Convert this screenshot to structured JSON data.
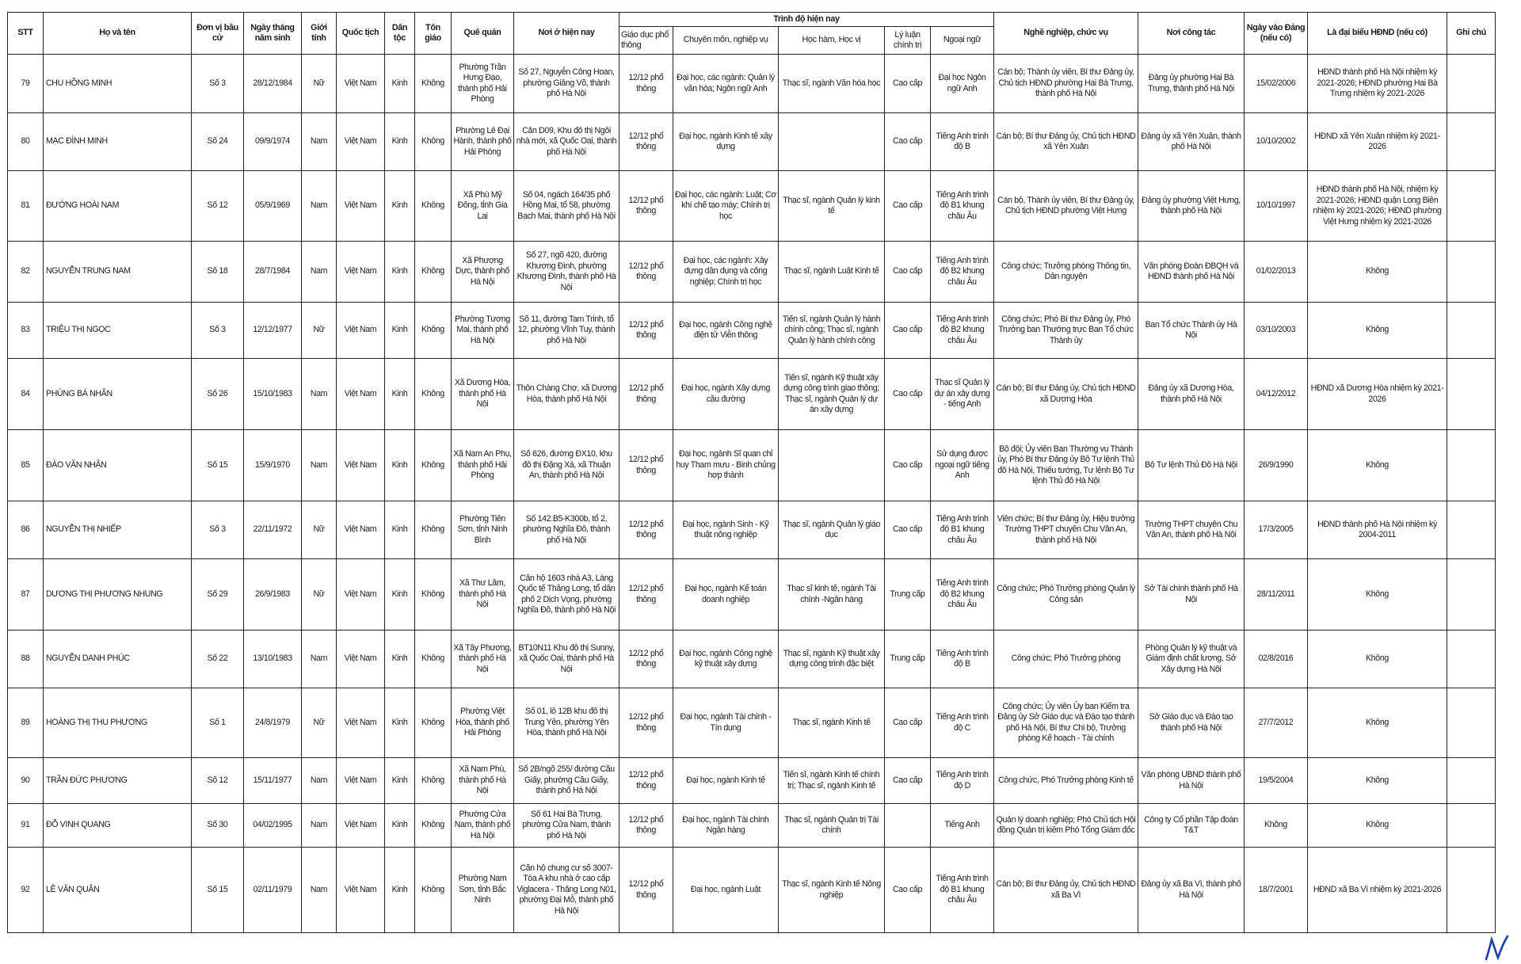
{
  "headers": {
    "stt": "STT",
    "name": "Họ và tên",
    "unit": "Đơn vị bầu cử",
    "dob": "Ngày tháng năm sinh",
    "gender": "Giới tính",
    "nationality": "Quốc tịch",
    "ethnicity": "Dân tộc",
    "religion": "Tôn giáo",
    "hometown": "Quê quán",
    "residence": "Nơi ở hiện nay",
    "education_group": "Trình độ hiện nay",
    "general_edu": "Giáo dục phổ thông",
    "specialty": "Chuyên môn, nghiệp vụ",
    "degree": "Học hàm, Học vị",
    "politics": "Lý luận chính trị",
    "language": "Ngoại ngữ",
    "occupation": "Nghề nghiệp, chức vụ",
    "workplace": "Nơi công tác",
    "party_date": "Ngày vào Đảng (nếu có)",
    "council": "Là đại biểu HĐND (nếu có)",
    "note": "Ghi chú"
  },
  "rows": [
    {
      "stt": "79",
      "name": "CHU HỒNG MINH",
      "unit": "Số 3",
      "dob": "28/12/1984",
      "gender": "Nữ",
      "nationality": "Việt Nam",
      "ethnicity": "Kinh",
      "religion": "Không",
      "hometown": "Phường Trần Hưng Đạo, thành phố Hải Phòng",
      "residence": "Số 27, Nguyễn Công Hoan, phường Giảng Võ, thành phố Hà Nội",
      "general_edu": "12/12 phổ thông",
      "specialty": "Đại học, các ngành: Quản lý văn hóa; Ngôn ngữ Anh",
      "degree": "Thạc sĩ, ngành Văn hóa học",
      "politics": "Cao cấp",
      "language": "Đại học Ngôn ngữ Anh",
      "occupation": "Cán bộ; Thành ủy viên, Bí thư Đảng ủy, Chủ tịch HĐND phường Hai Bà Trưng, thành phố Hà Nội",
      "workplace": "Đảng ủy phường Hai Bà Trưng, thành phố Hà Nội",
      "party_date": "15/02/2006",
      "council": "HĐND thành phố Hà Nội nhiệm kỳ 2021-2026; HĐND phường Hai Bà Trưng nhiệm kỳ 2021-2026",
      "note": ""
    },
    {
      "stt": "80",
      "name": "MẠC ĐÌNH MINH",
      "unit": "Số 24",
      "dob": "09/9/1974",
      "gender": "Nam",
      "nationality": "Việt Nam",
      "ethnicity": "Kinh",
      "religion": "Không",
      "hometown": "Phường Lê Đại Hành, thành phố Hải Phòng",
      "residence": "Căn D09, Khu đô thị Ngôi nhà mới, xã Quốc Oai, thành phố Hà Nội",
      "general_edu": "12/12 phổ thông",
      "specialty": "Đại học, ngành Kinh tế xây dựng",
      "degree": "",
      "politics": "Cao cấp",
      "language": "Tiếng Anh trình độ B",
      "occupation": "Cán bộ; Bí thư Đảng ủy, Chủ tịch HĐND xã Yên Xuân",
      "workplace": "Đảng ủy xã Yên Xuân, thành phố Hà Nội",
      "party_date": "10/10/2002",
      "council": "HĐND xã Yên Xuân nhiệm kỳ 2021-2026",
      "note": ""
    },
    {
      "stt": "81",
      "name": "ĐƯỜNG HOÀI NAM",
      "unit": "Số 12",
      "dob": "05/9/1969",
      "gender": "Nam",
      "nationality": "Việt Nam",
      "ethnicity": "Kinh",
      "religion": "Không",
      "hometown": "Xã Phù Mỹ Đông, tỉnh Gia Lai",
      "residence": "Số 04, ngách 164/35 phố Hồng Mai, tổ 58, phường Bạch Mai, thành phố Hà Nội",
      "general_edu": "12/12 phổ thông",
      "specialty": "Đại học, các ngành: Luật; Cơ khí chế tạo máy; Chính trị học",
      "degree": "Thạc sĩ, ngành Quản lý kinh tế",
      "politics": "Cao cấp",
      "language": "Tiếng Anh trình độ B1 khung châu Âu",
      "occupation": "Cán bộ, Thành ủy viên, Bí thư Đảng ủy, Chủ tịch HĐND phường Việt Hưng",
      "workplace": "Đảng ủy phường Việt Hưng, thành phố Hà Nội",
      "party_date": "10/10/1997",
      "council": "HĐND thành phố Hà Nội, nhiệm kỳ 2021-2026; HĐND quận Long Biên nhiệm kỳ 2021-2026; HĐND phường Việt Hưng nhiệm kỳ 2021-2026",
      "note": ""
    },
    {
      "stt": "82",
      "name": "NGUYỄN TRUNG NAM",
      "unit": "Số 18",
      "dob": "28/7/1984",
      "gender": "Nam",
      "nationality": "Việt Nam",
      "ethnicity": "Kinh",
      "religion": "Không",
      "hometown": "Xã Phượng Dực, thành phố Hà Nội",
      "residence": "Số 27, ngõ 420, đường Khương Đình, phường Khương Đình, thành phố Hà Nội",
      "general_edu": "12/12 phổ thông",
      "specialty": "Đại học, các ngành: Xây dựng dân dụng và công nghiệp; Chính trị học",
      "degree": "Thạc sĩ, ngành Luật Kinh tế",
      "politics": "Cao cấp",
      "language": "Tiếng Anh trình độ B2 khung châu Âu",
      "occupation": "Công chức; Trưởng phòng Thông tin, Dân nguyện",
      "workplace": "Văn phòng Đoàn ĐBQH và HĐND thành phố Hà Nội",
      "party_date": "01/02/2013",
      "council": "Không",
      "note": ""
    },
    {
      "stt": "83",
      "name": "TRIỆU THỊ NGỌC",
      "unit": "Số 3",
      "dob": "12/12/1977",
      "gender": "Nữ",
      "nationality": "Việt Nam",
      "ethnicity": "Kinh",
      "religion": "Không",
      "hometown": "Phường Tương Mai, thành phố Hà Nội",
      "residence": "Số 11, đường Tam Trinh, tổ 12, phường Vĩnh Tuy, thành phố Hà Nội",
      "general_edu": "12/12 phổ thông",
      "specialty": "Đại học, ngành Công nghệ điện tử Viễn thông",
      "degree": "Tiến sĩ, ngành Quản lý hành chính công; Thạc sĩ, ngành Quản lý hành chính công",
      "politics": "Cao cấp",
      "language": "Tiếng Anh trình độ B2 khung châu Âu",
      "occupation": "Công chức; Phó Bí thư Đảng ủy, Phó Trưởng ban Thường trực Ban Tổ chức Thành ủy",
      "workplace": "Ban Tổ chức Thành ủy Hà Nội",
      "party_date": "03/10/2003",
      "council": "Không",
      "note": ""
    },
    {
      "stt": "84",
      "name": "PHÙNG BÁ NHÂN",
      "unit": "Số 26",
      "dob": "15/10/1983",
      "gender": "Nam",
      "nationality": "Việt Nam",
      "ethnicity": "Kinh",
      "religion": "Không",
      "hometown": "Xã Dương Hòa, thành phố Hà Nội",
      "residence": "Thôn Chàng Chợ, xã Dương Hòa, thành phố Hà Nội",
      "general_edu": "12/12 phổ thông",
      "specialty": "Đại học, ngành Xây dựng cầu đường",
      "degree": "Tiến sĩ, ngành Kỹ thuật xây dựng công trình giao thông; Thạc sĩ, ngành Quản lý dự án xây dựng",
      "politics": "Cao cấp",
      "language": "Thạc sĩ Quản lý dự án xây dựng - tiếng Anh",
      "occupation": "Cán bộ; Bí thư Đảng ủy, Chủ tịch HĐND xã Dương Hòa",
      "workplace": "Đảng ủy xã Dương Hòa, thành phố Hà Nội",
      "party_date": "04/12/2012",
      "council": "HĐND xã Dương Hòa nhiệm kỳ 2021-2026",
      "note": ""
    },
    {
      "stt": "85",
      "name": "ĐÀO VĂN NHẬN",
      "unit": "Số 15",
      "dob": "15/9/1970",
      "gender": "Nam",
      "nationality": "Việt Nam",
      "ethnicity": "Kinh",
      "religion": "Không",
      "hometown": "Xã Nam An Phụ, thành phố Hải Phòng",
      "residence": "Số 626, đường ĐX10, khu đô thị Đặng Xá, xã Thuận An, thành phố Hà Nội",
      "general_edu": "12/12 phổ thông",
      "specialty": "Đại học, ngành Sĩ quan chỉ huy Tham mưu - Binh chủng hợp thành",
      "degree": "",
      "politics": "Cao cấp",
      "language": "Sử dụng được ngoại ngữ tiếng Anh",
      "occupation": "Bộ đội; Ủy viên Ban Thường vụ Thành ủy, Phó Bí thư Đảng ủy Bộ Tư lệnh Thủ đô Hà Nội, Thiếu tướng, Tư lệnh Bộ Tư lệnh Thủ đô Hà Nội",
      "workplace": "Bộ Tư lệnh Thủ Đô Hà Nội",
      "party_date": "26/9/1990",
      "council": "Không",
      "note": ""
    },
    {
      "stt": "86",
      "name": "NGUYỄN THỊ NHIẾP",
      "unit": "Số 3",
      "dob": "22/11/1972",
      "gender": "Nữ",
      "nationality": "Việt Nam",
      "ethnicity": "Kinh",
      "religion": "Không",
      "hometown": "Phường Tiên Sơn, tỉnh Ninh Bình",
      "residence": "Số 142.B5-K300b, tổ 2, phường Nghĩa Đô, thành phố Hà Nội",
      "general_edu": "12/12 phổ thông",
      "specialty": "Đại học, ngành Sinh - Kỹ thuật nông nghiệp",
      "degree": "Thạc sĩ, ngành Quản lý giáo dục",
      "politics": "Cao cấp",
      "language": "Tiếng Anh trình độ B1 khung châu Âu",
      "occupation": "Viên chức; Bí thư Đảng ủy, Hiệu trưởng Trường THPT chuyên Chu Văn An, thành phố Hà Nội",
      "workplace": "Trường THPT chuyên Chu Văn An, thành phố Hà Nội",
      "party_date": "17/3/2005",
      "council": "HĐND thành phố Hà Nội nhiệm kỳ 2004-2011",
      "note": ""
    },
    {
      "stt": "87",
      "name": "DƯƠNG THỊ PHƯƠNG NHUNG",
      "unit": "Số 29",
      "dob": "26/9/1983",
      "gender": "Nữ",
      "nationality": "Việt Nam",
      "ethnicity": "Kinh",
      "religion": "Không",
      "hometown": "Xã Thư Lâm, thành phố Hà Nội",
      "residence": "Căn hộ 1603 nhà A3, Làng Quốc tế Thăng Long, tổ dân phố 2 Dịch Vọng, phường Nghĩa Đô, thành phố Hà Nội",
      "general_edu": "12/12 phổ thông",
      "specialty": "Đại học, ngành Kế toán doanh nghiệp",
      "degree": "Thạc sĩ kinh tế, ngành Tài chính -Ngân hàng",
      "politics": "Trung cấp",
      "language": "Tiếng Anh trình độ B2 khung châu Âu",
      "occupation": "Công chức; Phó Trưởng phòng Quản lý Công sản",
      "workplace": "Sở Tài chính thành phố Hà Nội",
      "party_date": "28/11/2011",
      "council": "Không",
      "note": ""
    },
    {
      "stt": "88",
      "name": "NGUYỄN DANH PHÚC",
      "unit": "Số 22",
      "dob": "13/10/1983",
      "gender": "Nam",
      "nationality": "Việt Nam",
      "ethnicity": "Kinh",
      "religion": "Không",
      "hometown": "Xã Tây Phương, thành phố Hà Nội",
      "residence": "BT10N11 Khu đô thị Sunny, xã Quốc Oai, thành phố Hà Nội",
      "general_edu": "12/12 phổ thông",
      "specialty": "Đại học, ngành Công nghệ kỹ thuật xây dựng",
      "degree": "Thạc sĩ, ngành Kỹ thuật xây dựng công trình đặc biệt",
      "politics": "Trung cấp",
      "language": "Tiếng Anh trình độ B",
      "occupation": "Công chức; Phó Trưởng phòng",
      "workplace": "Phòng Quản lý kỹ thuật và Giám định chất lượng, Sở Xây dựng Hà Nội",
      "party_date": "02/8/2016",
      "council": "Không",
      "note": ""
    },
    {
      "stt": "89",
      "name": "HOÀNG THỊ THU PHƯƠNG",
      "unit": "Số 1",
      "dob": "24/8/1979",
      "gender": "Nữ",
      "nationality": "Việt Nam",
      "ethnicity": "Kinh",
      "religion": "Không",
      "hometown": "Phường Việt Hòa, thành phố Hải Phòng",
      "residence": "Số 01, lô 12B khu đô thị Trung Yên, phường Yên Hòa, thành phố Hà Nội",
      "general_edu": "12/12 phổ thông",
      "specialty": "Đại học, ngành Tài chính - Tín dụng",
      "degree": "Thạc sĩ, ngành Kinh tế",
      "politics": "Cao cấp",
      "language": "Tiếng Anh trình độ C",
      "occupation": "Công chức; Ủy viên Ủy ban Kiểm tra Đảng ủy Sở Giáo dục và Đào tạo thành phố Hà Nội, Bí thư Chi bộ, Trưởng phòng Kế hoạch - Tài chính",
      "workplace": "Sở Giáo dục và Đào tạo thành phố Hà Nội",
      "party_date": "27/7/2012",
      "council": "Không",
      "note": ""
    },
    {
      "stt": "90",
      "name": "TRẦN ĐỨC PHƯƠNG",
      "unit": "Số 12",
      "dob": "15/11/1977",
      "gender": "Nam",
      "nationality": "Việt Nam",
      "ethnicity": "Kinh",
      "religion": "Không",
      "hometown": "Xã Nam Phù, thành phố Hà Nội",
      "residence": "Số 2B/ngõ 255/ đường Cầu Giấy, phường Cầu Giấy, thành phố Hà Nội",
      "general_edu": "12/12 phổ thông",
      "specialty": "Đại học, ngành Kinh tế",
      "degree": "Tiến sĩ, ngành Kinh tế chính trị; Thạc sĩ, ngành Kinh tế",
      "politics": "Cao cấp",
      "language": "Tiếng Anh trình độ D",
      "occupation": "Công chức, Phó Trưởng phòng Kinh tế",
      "workplace": "Văn phòng UBND thành phố Hà Nội",
      "party_date": "19/5/2004",
      "council": "Không",
      "note": ""
    },
    {
      "stt": "91",
      "name": "ĐỖ VINH QUANG",
      "unit": "Số 30",
      "dob": "04/02/1995",
      "gender": "Nam",
      "nationality": "Việt Nam",
      "ethnicity": "Kinh",
      "religion": "Không",
      "hometown": "Phường Cửa Nam, thành phố Hà Nội",
      "residence": "Số 61 Hai Bà Trưng, phường Cửa Nam, thành phố Hà Nội",
      "general_edu": "12/12 phổ thông",
      "specialty": "Đại học, ngành Tài chính Ngân hàng",
      "degree": "Thạc sĩ, ngành Quản trị Tài chính",
      "politics": "",
      "language": "Tiếng Anh",
      "occupation": "Quản lý doanh nghiệp; Phó Chủ tịch Hội đồng Quản trị kiêm Phó Tổng Giám đốc",
      "workplace": "Công ty Cổ phần Tập đoàn T&T",
      "party_date": "Không",
      "council": "Không",
      "note": ""
    },
    {
      "stt": "92",
      "name": "LÊ VĂN QUÂN",
      "unit": "Số 15",
      "dob": "02/11/1979",
      "gender": "Nam",
      "nationality": "Việt Nam",
      "ethnicity": "Kinh",
      "religion": "Không",
      "hometown": "Phường Nam Sơn, tỉnh Bắc Ninh",
      "residence": "Căn hộ chung cư số 3007-Tòa A khu nhà ở cao cấp Viglacera - Thăng Long N01, phường Đại Mỗ, thành phố Hà Nội",
      "general_edu": "12/12 phổ thông",
      "specialty": "Đại học, ngành Luật",
      "degree": "Thạc sĩ, ngành Kinh tế Nông nghiệp",
      "politics": "Cao cấp",
      "language": "Tiếng Anh trình độ B1 khung châu Âu",
      "occupation": "Cán bộ; Bí thư Đảng ủy, Chủ tịch HĐND xã Ba Vì",
      "workplace": "Đảng ủy xã Ba Vì, thành phố Hà Nội",
      "party_date": "18/7/2001",
      "council": "HĐND xã Ba Vì nhiệm kỳ 2021-2026",
      "note": ""
    }
  ],
  "signature_color": "#1f3fa8"
}
